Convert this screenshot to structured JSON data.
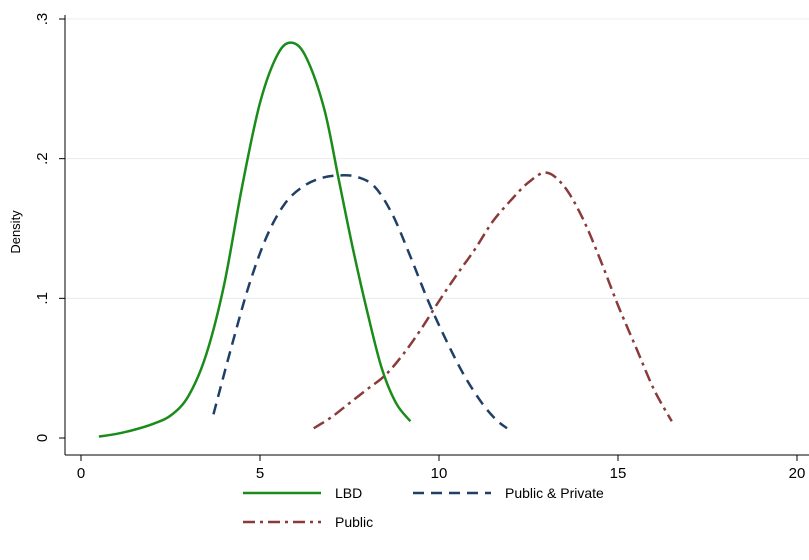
{
  "chart_data": {
    "type": "line",
    "title": "",
    "xlabel": "",
    "ylabel": "Density",
    "xlim": [
      0,
      20
    ],
    "ylim": [
      0,
      0.3
    ],
    "grid": true,
    "legend_position": "bottom",
    "xticks": [
      {
        "value": 0,
        "label": "0"
      },
      {
        "value": 5,
        "label": "5"
      },
      {
        "value": 10,
        "label": "10"
      },
      {
        "value": 15,
        "label": "15"
      },
      {
        "value": 20,
        "label": "20"
      }
    ],
    "yticks": [
      {
        "value": 0,
        "label": "0"
      },
      {
        "value": 0.1,
        "label": ".1"
      },
      {
        "value": 0.2,
        "label": ".2"
      },
      {
        "value": 0.3,
        "label": ".3"
      }
    ],
    "series": [
      {
        "name": "LBD",
        "color": "#1a8c1a",
        "dash": "solid",
        "x": [
          0.5,
          1.0,
          1.5,
          2.0,
          2.5,
          3.0,
          3.5,
          4.0,
          4.5,
          5.0,
          5.5,
          5.9,
          6.3,
          6.8,
          7.2,
          7.6,
          8.0,
          8.4,
          8.8,
          9.2
        ],
        "y": [
          0.001,
          0.003,
          0.006,
          0.01,
          0.016,
          0.03,
          0.06,
          0.11,
          0.18,
          0.24,
          0.275,
          0.283,
          0.272,
          0.235,
          0.185,
          0.135,
          0.09,
          0.05,
          0.025,
          0.012
        ]
      },
      {
        "name": "Public & Private",
        "color": "#1f3f66",
        "dash": "dash",
        "x": [
          3.7,
          4.2,
          4.7,
          5.2,
          5.7,
          6.2,
          6.7,
          7.2,
          7.7,
          8.2,
          8.7,
          9.2,
          9.7,
          10.2,
          10.7,
          11.2,
          11.6,
          11.9
        ],
        "y": [
          0.017,
          0.065,
          0.11,
          0.145,
          0.168,
          0.18,
          0.186,
          0.188,
          0.187,
          0.18,
          0.16,
          0.13,
          0.098,
          0.07,
          0.045,
          0.025,
          0.013,
          0.007
        ]
      },
      {
        "name": "Public",
        "color": "#8b3a3a",
        "dash": "dashdot",
        "x": [
          6.5,
          7.0,
          7.5,
          8.0,
          8.5,
          9.0,
          9.5,
          10.0,
          10.5,
          11.0,
          11.5,
          12.0,
          12.5,
          13.0,
          13.5,
          14.0,
          14.5,
          15.0,
          15.5,
          16.0,
          16.5
        ],
        "y": [
          0.007,
          0.015,
          0.025,
          0.035,
          0.045,
          0.06,
          0.078,
          0.098,
          0.117,
          0.135,
          0.155,
          0.17,
          0.183,
          0.19,
          0.18,
          0.158,
          0.128,
          0.095,
          0.065,
          0.035,
          0.012
        ]
      }
    ]
  }
}
